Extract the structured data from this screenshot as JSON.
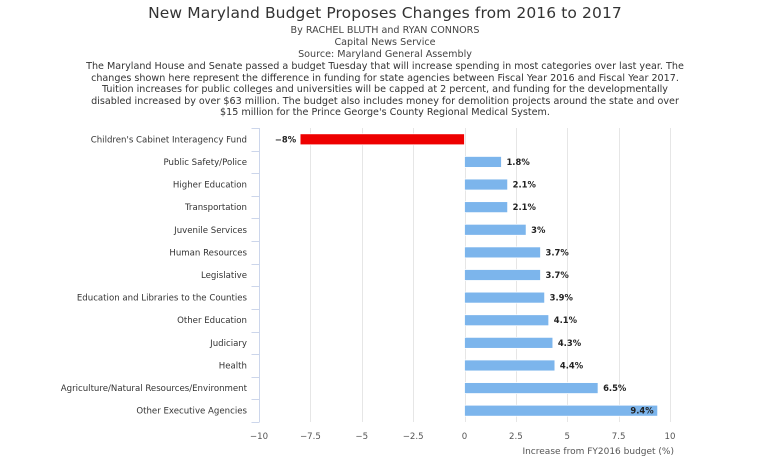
{
  "header": {
    "title": "New Maryland Budget Proposes Changes from 2016 to 2017",
    "byline": "By RACHEL BLUTH and RYAN CONNORS",
    "outlet": "Capital News Service",
    "source": "Source: Maryland General Assembly",
    "description_lines": [
      "The Maryland House and Senate passed a budget Tuesday that will increase spending in most categories over last year. The",
      "changes shown here represent the difference in funding for state agencies between Fiscal Year 2016 and Fiscal Year 2017.",
      "Tuition increases for public colleges and universities will be capped at 2 percent, and funding for the developmentally",
      "disabled increased by over $63 million. The budget also includes money for demolition projects around the state and over",
      "$15 million for the Prince George's County Regional Medical System."
    ]
  },
  "chart_data": {
    "type": "bar",
    "orientation": "horizontal",
    "title": "New Maryland Budget Proposes Changes from 2016 to 2017",
    "xlabel": "Increase from FY2016 budget (%)",
    "ylabel": "",
    "xlim": [
      -10,
      10
    ],
    "xticks": [
      -10,
      -7.5,
      -5,
      -2.5,
      0,
      2.5,
      5,
      7.5,
      10
    ],
    "xtick_labels": [
      "−10",
      "−7.5",
      "−5",
      "−2.5",
      "0",
      "2.5",
      "5",
      "7.5",
      "10"
    ],
    "grid": "vertical",
    "legend": "none",
    "categories": [
      "Children's Cabinet Interagency Fund",
      "Public Safety/Police",
      "Higher Education",
      "Transportation",
      "Juvenile Services",
      "Human Resources",
      "Legislative",
      "Education and Libraries to the Counties",
      "Other Education",
      "Judiciary",
      "Health",
      "Agriculture/Natural Resources/Environment",
      "Other Executive Agencies"
    ],
    "values": [
      -8,
      1.8,
      2.1,
      2.1,
      3,
      3.7,
      3.7,
      3.9,
      4.1,
      4.3,
      4.4,
      6.5,
      9.4
    ],
    "data_labels": [
      "−8%",
      "1.8%",
      "2.1%",
      "2.1%",
      "3%",
      "3.7%",
      "3.7%",
      "3.9%",
      "4.1%",
      "4.3%",
      "4.4%",
      "6.5%",
      "9.4%"
    ],
    "colors": {
      "positive": "#7cb5ec",
      "negative": "#ee0000"
    }
  }
}
